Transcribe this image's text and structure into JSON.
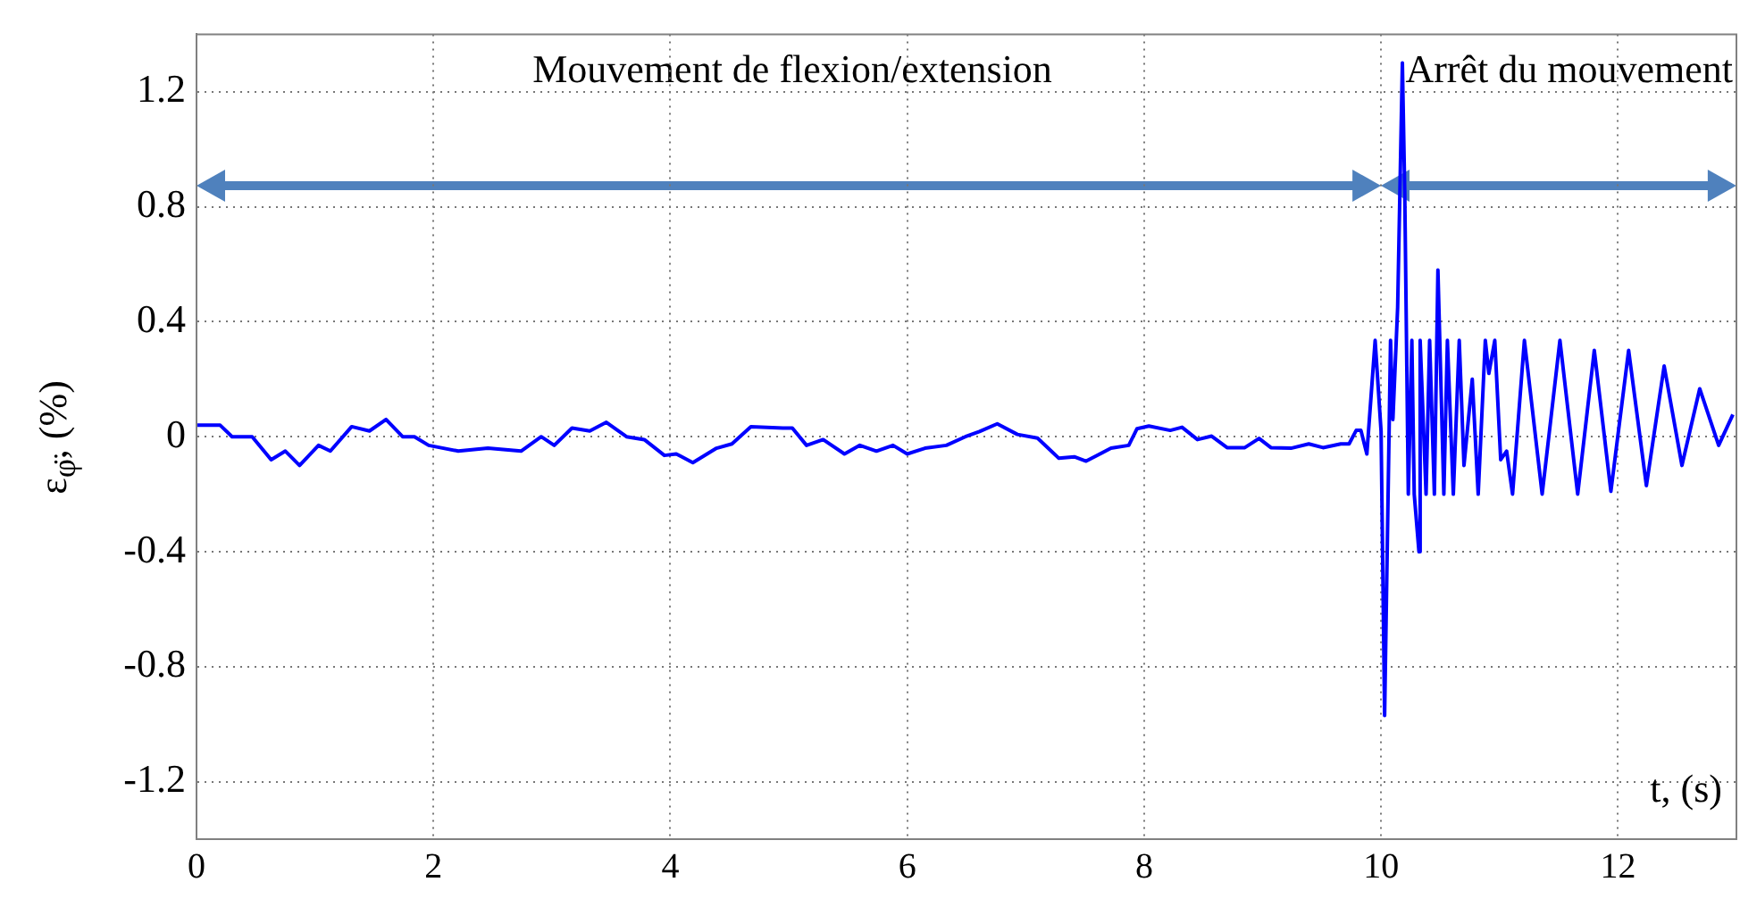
{
  "chart_data": {
    "type": "line",
    "xlabel": "t, (s)",
    "ylabel": "ε$_{φ̈}$, (%)",
    "xlim": [
      0,
      13
    ],
    "xticks": [
      0,
      2,
      4,
      6,
      8,
      10,
      12
    ],
    "ylim": [
      -1.4,
      1.4
    ],
    "yticks": [
      -1.2,
      -0.8,
      -0.4,
      0,
      0.4,
      0.8,
      1.2
    ],
    "grid": true,
    "marker": "none",
    "line_style": "solid",
    "series": [
      {
        "color": "#0000ff",
        "x": [
          0,
          0.2,
          0.3,
          0.47,
          0.63,
          0.75,
          0.87,
          1.03,
          1.13,
          1.31,
          1.46,
          1.6,
          1.74,
          1.84,
          1.96,
          2.21,
          2.46,
          2.74,
          2.91,
          3.02,
          3.17,
          3.32,
          3.46,
          3.63,
          3.78,
          3.95,
          4.05,
          4.19,
          4.39,
          4.52,
          4.68,
          4.95,
          5.03,
          5.15,
          5.29,
          5.47,
          5.6,
          5.74,
          5.88,
          6.0,
          6.15,
          6.33,
          6.49,
          6.61,
          6.76,
          6.93,
          7.1,
          7.28,
          7.41,
          7.51,
          7.72,
          7.87,
          7.94,
          8.04,
          8.22,
          8.32,
          8.45,
          8.57,
          8.7,
          8.85,
          8.97,
          9.07,
          9.24,
          9.39,
          9.51,
          9.66,
          9.73,
          9.79,
          9.83,
          9.88,
          9.95,
          10.0,
          10.03,
          10.08,
          10.1,
          10.14,
          10.18,
          10.2,
          10.23,
          10.26,
          10.28,
          10.32,
          10.33,
          10.38,
          10.41,
          10.45,
          10.48,
          10.53,
          10.56,
          10.61,
          10.66,
          10.7,
          10.77,
          10.82,
          10.88,
          10.91,
          10.96,
          11.01,
          11.06,
          11.11,
          11.21,
          11.36,
          11.51,
          11.66,
          11.8,
          11.94,
          12.09,
          12.24,
          12.39,
          12.54,
          12.69,
          12.85,
          12.97
        ],
        "values": [
          0.04,
          0.04,
          0.0,
          0.0,
          -0.08,
          -0.05,
          -0.1,
          -0.03,
          -0.05,
          0.035,
          0.02,
          0.06,
          0.0,
          0.0,
          -0.03,
          -0.05,
          -0.04,
          -0.05,
          0.0,
          -0.03,
          0.03,
          0.02,
          0.05,
          0.0,
          -0.01,
          -0.065,
          -0.06,
          -0.09,
          -0.04,
          -0.025,
          0.035,
          0.03,
          0.03,
          -0.03,
          -0.01,
          -0.06,
          -0.03,
          -0.05,
          -0.03,
          -0.06,
          -0.04,
          -0.03,
          0.0,
          0.018,
          0.045,
          0.008,
          -0.005,
          -0.075,
          -0.07,
          -0.085,
          -0.04,
          -0.03,
          0.028,
          0.037,
          0.022,
          0.033,
          -0.01,
          0.002,
          -0.038,
          -0.038,
          -0.006,
          -0.038,
          -0.04,
          -0.025,
          -0.038,
          -0.025,
          -0.025,
          0.022,
          0.022,
          -0.06,
          0.335,
          0.02,
          -0.97,
          0.335,
          0.06,
          0.45,
          1.3,
          0.85,
          -0.2,
          0.335,
          -0.2,
          -0.4,
          0.335,
          -0.2,
          0.335,
          -0.2,
          0.58,
          -0.2,
          0.335,
          -0.2,
          0.335,
          -0.1,
          0.2,
          -0.2,
          0.335,
          0.22,
          0.335,
          -0.08,
          -0.05,
          -0.2,
          0.335,
          -0.2,
          0.335,
          -0.2,
          0.3,
          -0.19,
          0.3,
          -0.17,
          0.246,
          -0.1,
          0.167,
          -0.03,
          0.077
        ]
      }
    ],
    "annotations": [
      "Mouvement de flexion/extension",
      "Arrêt du mouvement"
    ]
  }
}
